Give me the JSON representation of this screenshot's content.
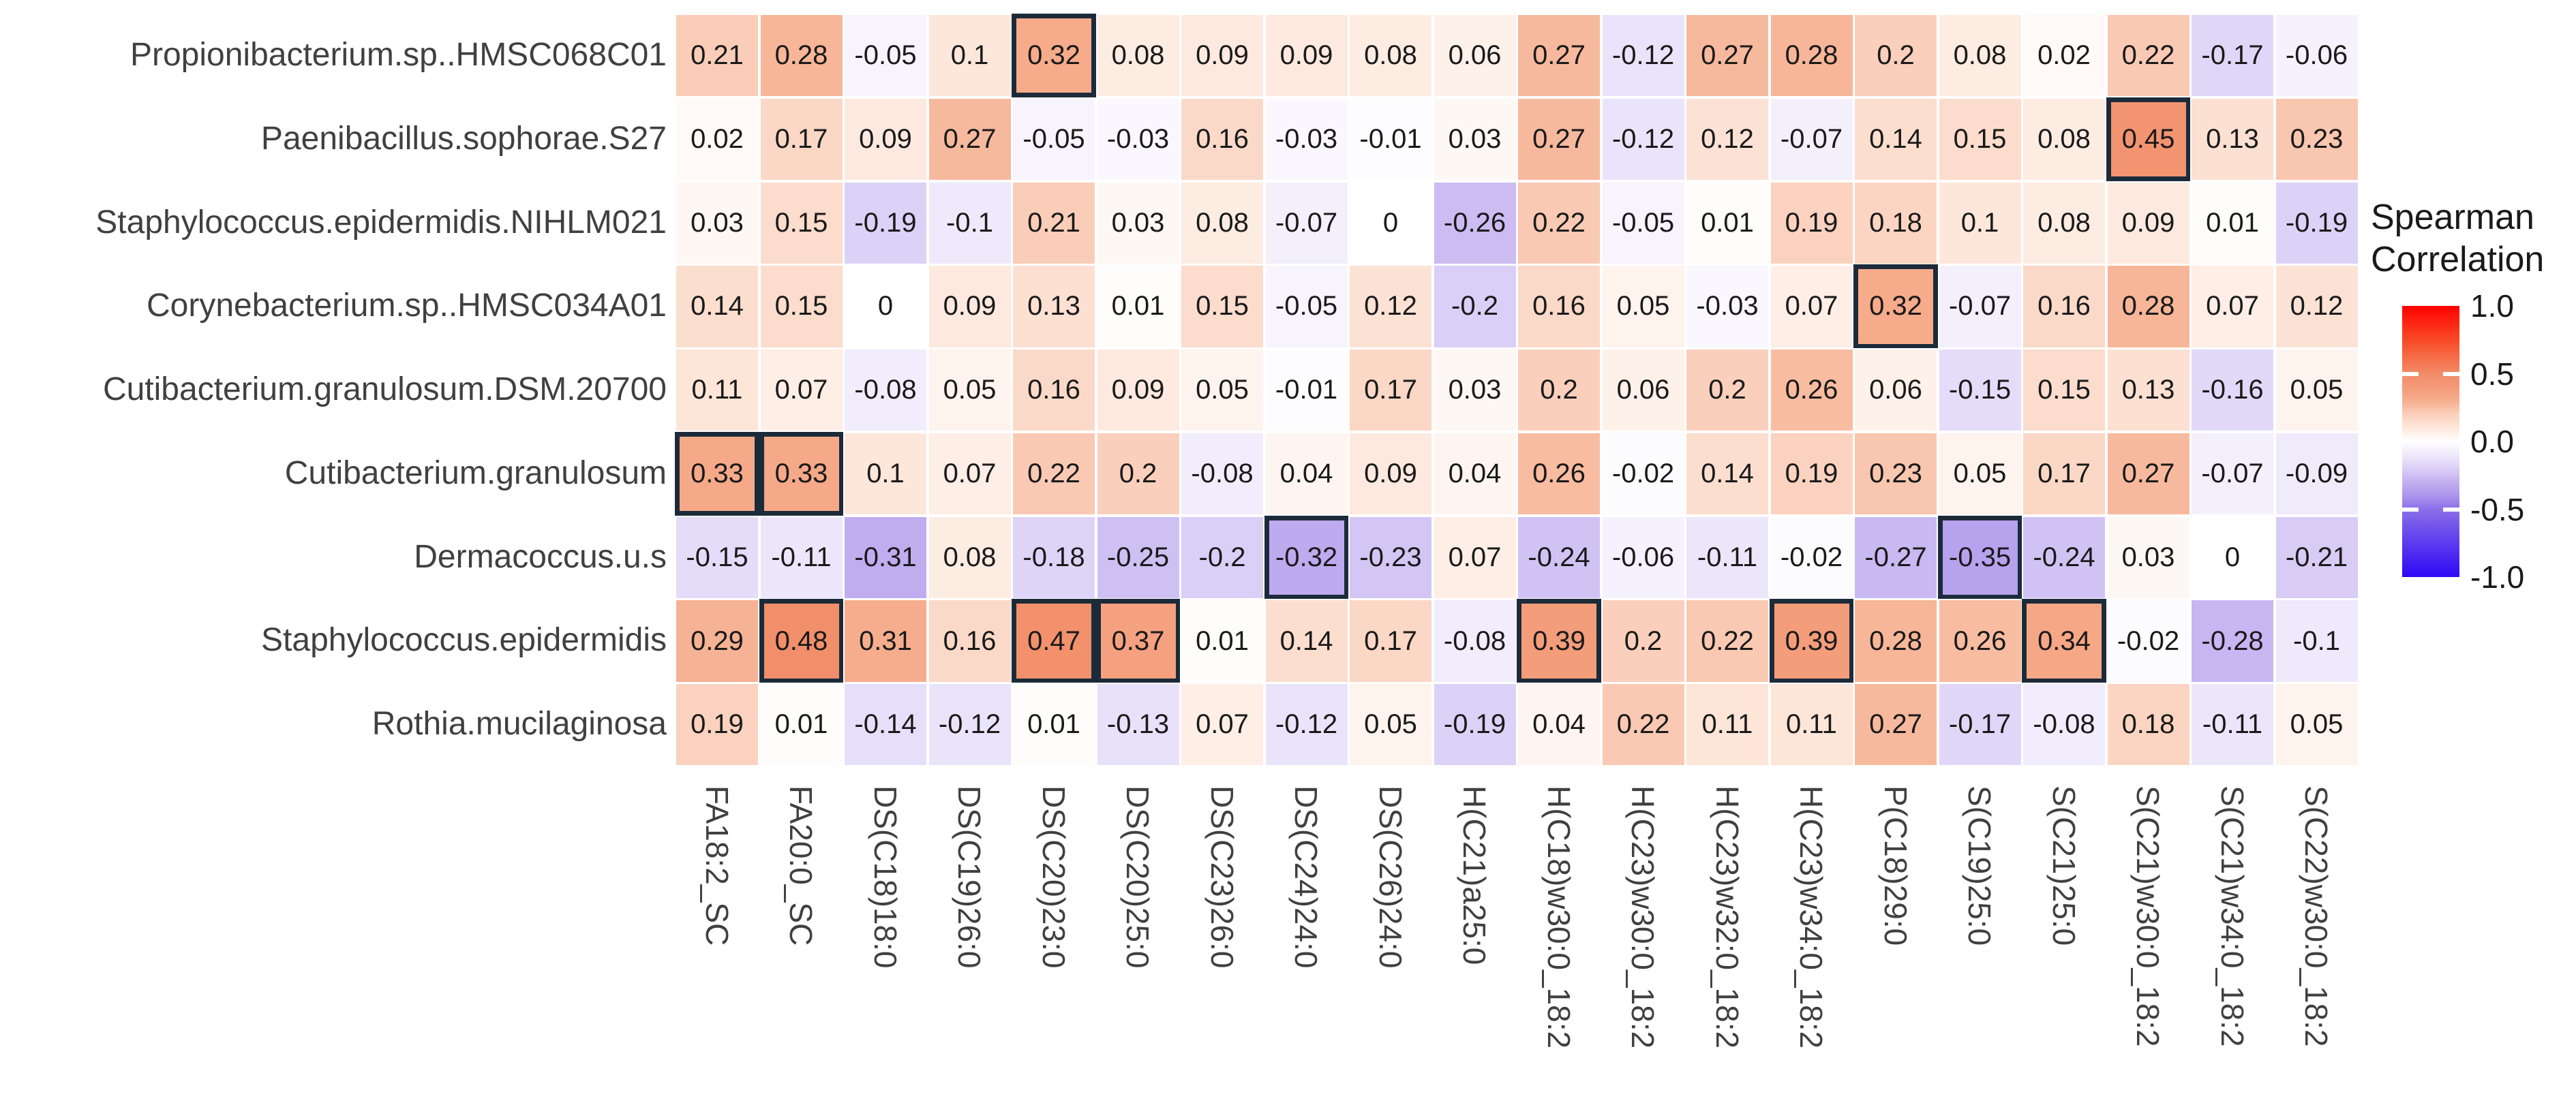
{
  "chart_data": {
    "type": "heatmap",
    "title": "",
    "legend": {
      "title_line1": "Spearman",
      "title_line2": "Correlation",
      "position": "right",
      "ticks": [
        "1.0",
        "0.5",
        "0.0",
        "-0.5",
        "-1.0"
      ],
      "tick_values": [
        1.0,
        0.5,
        0.0,
        -0.5,
        -1.0
      ]
    },
    "rows": [
      "Propionibacterium.sp..HMSC068C01",
      "Paenibacillus.sophorae.S27",
      "Staphylococcus.epidermidis.NIHLM021",
      "Corynebacterium.sp..HMSC034A01",
      "Cutibacterium.granulosum.DSM.20700",
      "Cutibacterium.granulosum",
      "Dermacoccus.u.s",
      "Staphylococcus.epidermidis",
      "Rothia.mucilaginosa"
    ],
    "columns": [
      "FA18:2_SC",
      "FA20:0_SC",
      "DS(C18)18:0",
      "DS(C19)26:0",
      "DS(C20)23:0",
      "DS(C20)25:0",
      "DS(C23)26:0",
      "DS(C24)24:0",
      "DS(C26)24:0",
      "H(C21)a25:0",
      "H(C18)w30:0_18:2",
      "H(C23)w30:0_18:2",
      "H(C23)w32:0_18:2",
      "H(C23)w34:0_18:2",
      "P(C18)29:0",
      "S(C19)25:0",
      "S(C21)25:0",
      "S(C21)w30:0_18:2",
      "S(C21)w34:0_18:2",
      "S(C22)w30:0_18:2"
    ],
    "values": [
      [
        0.21,
        0.28,
        -0.05,
        0.1,
        0.32,
        0.08,
        0.09,
        0.09,
        0.08,
        0.06,
        0.27,
        -0.12,
        0.27,
        0.28,
        0.2,
        0.08,
        0.02,
        0.22,
        -0.17,
        -0.06
      ],
      [
        0.02,
        0.17,
        0.09,
        0.27,
        -0.05,
        -0.03,
        0.16,
        -0.03,
        -0.01,
        0.03,
        0.27,
        -0.12,
        0.12,
        -0.07,
        0.14,
        0.15,
        0.08,
        0.45,
        0.13,
        0.23
      ],
      [
        0.03,
        0.15,
        -0.19,
        -0.1,
        0.21,
        0.03,
        0.08,
        -0.07,
        0,
        -0.26,
        0.22,
        -0.05,
        0.01,
        0.19,
        0.18,
        0.1,
        0.08,
        0.09,
        0.01,
        -0.19
      ],
      [
        0.14,
        0.15,
        0,
        0.09,
        0.13,
        0.01,
        0.15,
        -0.05,
        0.12,
        -0.2,
        0.16,
        0.05,
        -0.03,
        0.07,
        0.32,
        -0.07,
        0.16,
        0.28,
        0.07,
        0.12
      ],
      [
        0.11,
        0.07,
        -0.08,
        0.05,
        0.16,
        0.09,
        0.05,
        -0.01,
        0.17,
        0.03,
        0.2,
        0.06,
        0.2,
        0.26,
        0.06,
        -0.15,
        0.15,
        0.13,
        -0.16,
        0.05
      ],
      [
        0.33,
        0.33,
        0.1,
        0.07,
        0.22,
        0.2,
        -0.08,
        0.04,
        0.09,
        0.04,
        0.26,
        -0.02,
        0.14,
        0.19,
        0.23,
        0.05,
        0.17,
        0.27,
        -0.07,
        -0.09
      ],
      [
        -0.15,
        -0.11,
        -0.31,
        0.08,
        -0.18,
        -0.25,
        -0.2,
        -0.32,
        -0.23,
        0.07,
        -0.24,
        -0.06,
        -0.11,
        -0.02,
        -0.27,
        -0.35,
        -0.24,
        0.03,
        0,
        -0.21
      ],
      [
        0.29,
        0.48,
        0.31,
        0.16,
        0.47,
        0.37,
        0.01,
        0.14,
        0.17,
        -0.08,
        0.39,
        0.2,
        0.22,
        0.39,
        0.28,
        0.26,
        0.34,
        -0.02,
        -0.28,
        -0.1
      ],
      [
        0.19,
        0.01,
        -0.14,
        -0.12,
        0.01,
        -0.13,
        0.07,
        -0.12,
        0.05,
        -0.19,
        0.04,
        0.22,
        0.11,
        0.11,
        0.27,
        -0.17,
        -0.08,
        0.18,
        -0.11,
        0.05
      ]
    ],
    "highlighted_cells": [
      [
        0,
        4
      ],
      [
        1,
        17
      ],
      [
        3,
        14
      ],
      [
        5,
        0
      ],
      [
        5,
        1
      ],
      [
        6,
        7
      ],
      [
        6,
        15
      ],
      [
        7,
        1
      ],
      [
        7,
        4
      ],
      [
        7,
        5
      ],
      [
        7,
        10
      ],
      [
        7,
        13
      ],
      [
        7,
        16
      ]
    ],
    "value_range": [
      -1.0,
      1.0
    ],
    "colors": {
      "highlight_border": "#1C2B3A",
      "cell_gap": "#FFFFFF",
      "value_text": "#1A1A1A",
      "axis_text": "#404040",
      "color_stops": [
        [
          -1.0,
          "#2E08F5"
        ],
        [
          -0.5,
          "#8A6FE8"
        ],
        [
          -0.4,
          "#AC94EC"
        ],
        [
          -0.3,
          "#C2B0F0"
        ],
        [
          -0.2,
          "#DACFF6"
        ],
        [
          -0.1,
          "#EEE9FB"
        ],
        [
          0.0,
          "#FFFFFF"
        ],
        [
          0.1,
          "#FDE7DB"
        ],
        [
          0.2,
          "#FAD0BC"
        ],
        [
          0.3,
          "#F6AF8F"
        ],
        [
          0.4,
          "#F49B79"
        ],
        [
          0.5,
          "#F28C68"
        ],
        [
          0.75,
          "#F84A24"
        ],
        [
          1.0,
          "#FF0000"
        ]
      ]
    }
  }
}
